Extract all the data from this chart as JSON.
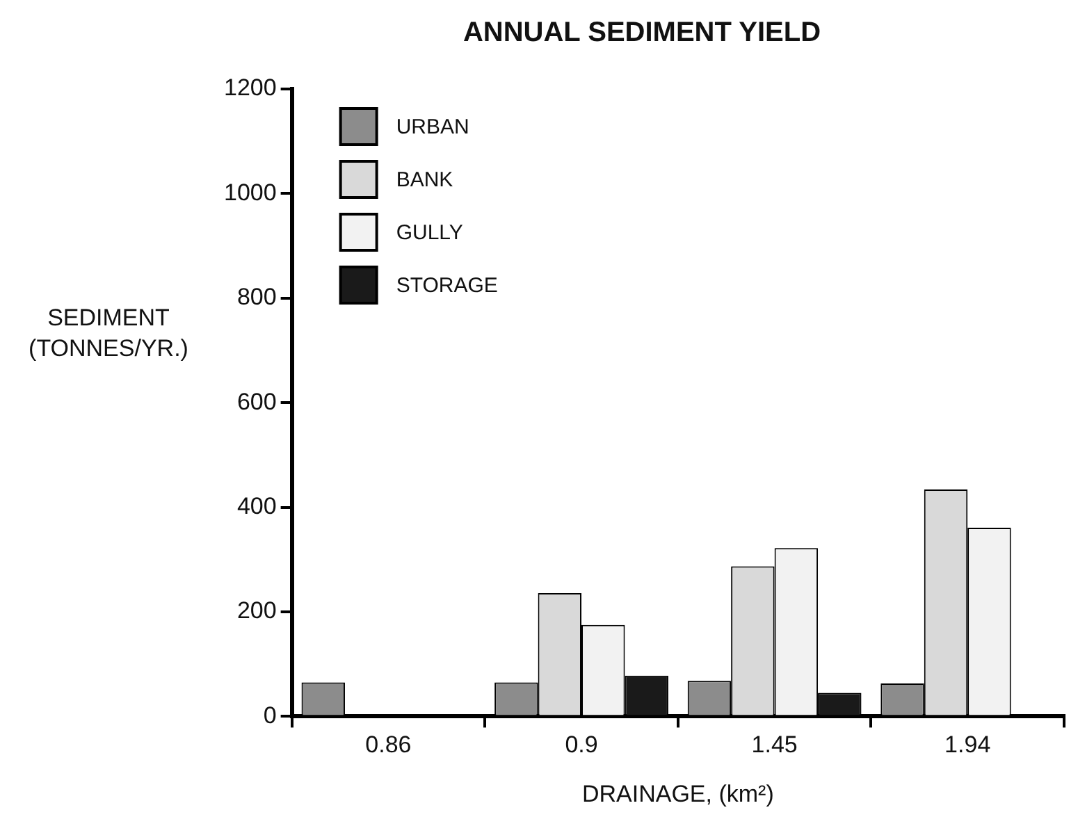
{
  "chart_data": {
    "type": "bar",
    "title": "ANNUAL SEDIMENT YIELD",
    "xlabel": "DRAINAGE, (km²)",
    "ylabel": "SEDIMENT (TONNES/YR.)",
    "categories": [
      "0.86",
      "0.9",
      "1.45",
      "1.94"
    ],
    "series": [
      {
        "name": "URBAN",
        "color": "#8c8c8c",
        "values": [
          65,
          65,
          68,
          63
        ]
      },
      {
        "name": "BANK",
        "color": "#d9d9d9",
        "values": [
          null,
          236,
          287,
          434
        ]
      },
      {
        "name": "GULLY",
        "color": "#f2f2f2",
        "values": [
          null,
          175,
          322,
          361
        ]
      },
      {
        "name": "STORAGE",
        "color": "#1a1a1a",
        "values": [
          null,
          78,
          45,
          null
        ]
      }
    ],
    "ylim": [
      0,
      1200
    ],
    "yticks": [
      0,
      200,
      400,
      600,
      800,
      1000,
      1200
    ],
    "legend": "top left"
  }
}
